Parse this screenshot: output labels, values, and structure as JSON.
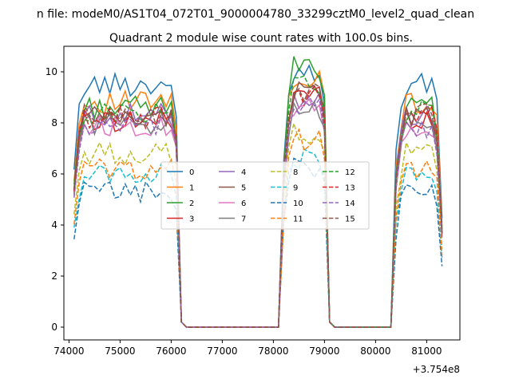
{
  "chart_data": {
    "type": "line",
    "suptitle": "n file: modeM0/AS1T04_072T01_9000004780_33299cztM0_level2_quad_clean",
    "title": "Quadrant 2 module wise count rates with 100.0s bins.",
    "xlabel": "",
    "ylabel": "",
    "offset_label": "+3.754e8",
    "xlim": [
      73900,
      81650
    ],
    "ylim": [
      -0.5,
      11.0
    ],
    "xticks": [
      "74000",
      "75000",
      "76000",
      "77000",
      "78000",
      "79000",
      "80000",
      "81000"
    ],
    "yticks": [
      "0",
      "2",
      "4",
      "6",
      "8",
      "10"
    ],
    "legend_location": "center",
    "segments": [
      {
        "start": 74150,
        "end": 76150
      },
      {
        "start": 78250,
        "end": 79050
      },
      {
        "start": 80450,
        "end": 81250
      }
    ],
    "series": [
      {
        "name": "0",
        "level": 9.5,
        "peak": 10.1,
        "color": "#1f77b4",
        "dash": "solid"
      },
      {
        "name": "1",
        "level": 8.8,
        "peak": 9.7,
        "color": "#ff7f0e",
        "dash": "solid"
      },
      {
        "name": "2",
        "level": 8.6,
        "peak": 10.2,
        "color": "#2ca02c",
        "dash": "solid"
      },
      {
        "name": "3",
        "level": 8.1,
        "peak": 9.2,
        "color": "#d62728",
        "dash": "solid"
      },
      {
        "name": "4",
        "level": 8.3,
        "peak": 8.9,
        "color": "#9467bd",
        "dash": "solid"
      },
      {
        "name": "5",
        "level": 8.2,
        "peak": 9.3,
        "color": "#8c564b",
        "dash": "solid"
      },
      {
        "name": "6",
        "level": 7.9,
        "peak": 8.6,
        "color": "#e377c2",
        "dash": "solid"
      },
      {
        "name": "7",
        "level": 8.0,
        "peak": 8.4,
        "color": "#7f7f7f",
        "dash": "solid"
      },
      {
        "name": "8",
        "level": 6.8,
        "peak": 7.6,
        "color": "#bcbd22",
        "dash": "dashed"
      },
      {
        "name": "9",
        "level": 6.0,
        "peak": 6.6,
        "color": "#17becf",
        "dash": "dashed"
      },
      {
        "name": "10",
        "level": 5.3,
        "peak": 6.2,
        "color": "#1f77b4",
        "dash": "dashed"
      },
      {
        "name": "11",
        "level": 6.2,
        "peak": 7.3,
        "color": "#ff7f0e",
        "dash": "dashed"
      },
      {
        "name": "12",
        "level": 8.4,
        "peak": 9.4,
        "color": "#2ca02c",
        "dash": "dashed"
      },
      {
        "name": "13",
        "level": 8.2,
        "peak": 9.0,
        "color": "#d62728",
        "dash": "dashed"
      },
      {
        "name": "14",
        "level": 7.8,
        "peak": 8.6,
        "color": "#9467bd",
        "dash": "dashed"
      },
      {
        "name": "15",
        "level": 8.3,
        "peak": 9.1,
        "color": "#8c564b",
        "dash": "dashed"
      }
    ]
  }
}
